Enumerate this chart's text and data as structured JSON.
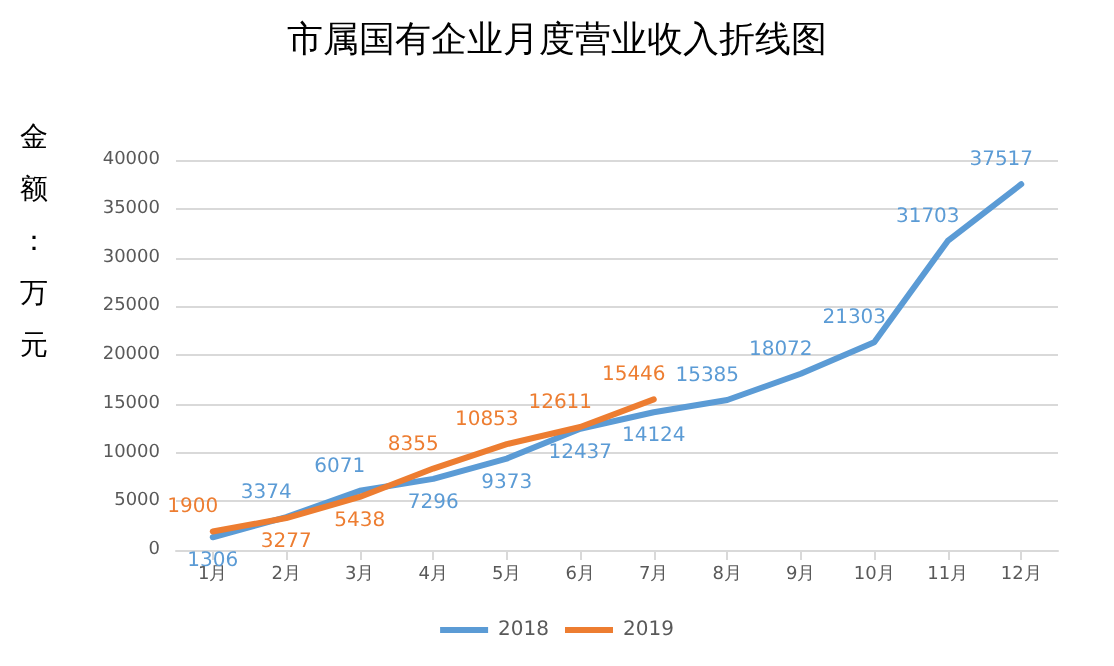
{
  "chart_data": {
    "type": "line",
    "title": "市属国有企业月度营业收入折线图",
    "ylabel": "金额：万元",
    "categories": [
      "1月",
      "2月",
      "3月",
      "4月",
      "5月",
      "6月",
      "7月",
      "8月",
      "9月",
      "10月",
      "11月",
      "12月"
    ],
    "series": [
      {
        "name": "2018",
        "color": "#5b9bd5",
        "values": [
          1306,
          3374,
          6071,
          7296,
          9373,
          12437,
          14124,
          15385,
          18072,
          21303,
          31703,
          37517
        ]
      },
      {
        "name": "2019",
        "color": "#ed7d31",
        "values": [
          1900,
          3277,
          5438,
          8355,
          10853,
          12611,
          15446,
          null,
          null,
          null,
          null,
          null
        ]
      }
    ],
    "ylim": [
      0,
      40000
    ],
    "yticks": [
      0,
      5000,
      10000,
      15000,
      20000,
      25000,
      30000,
      35000,
      40000
    ],
    "grid": "y",
    "legend": "bottom",
    "data_labels": true,
    "marker": "none",
    "line_style": "solid"
  }
}
